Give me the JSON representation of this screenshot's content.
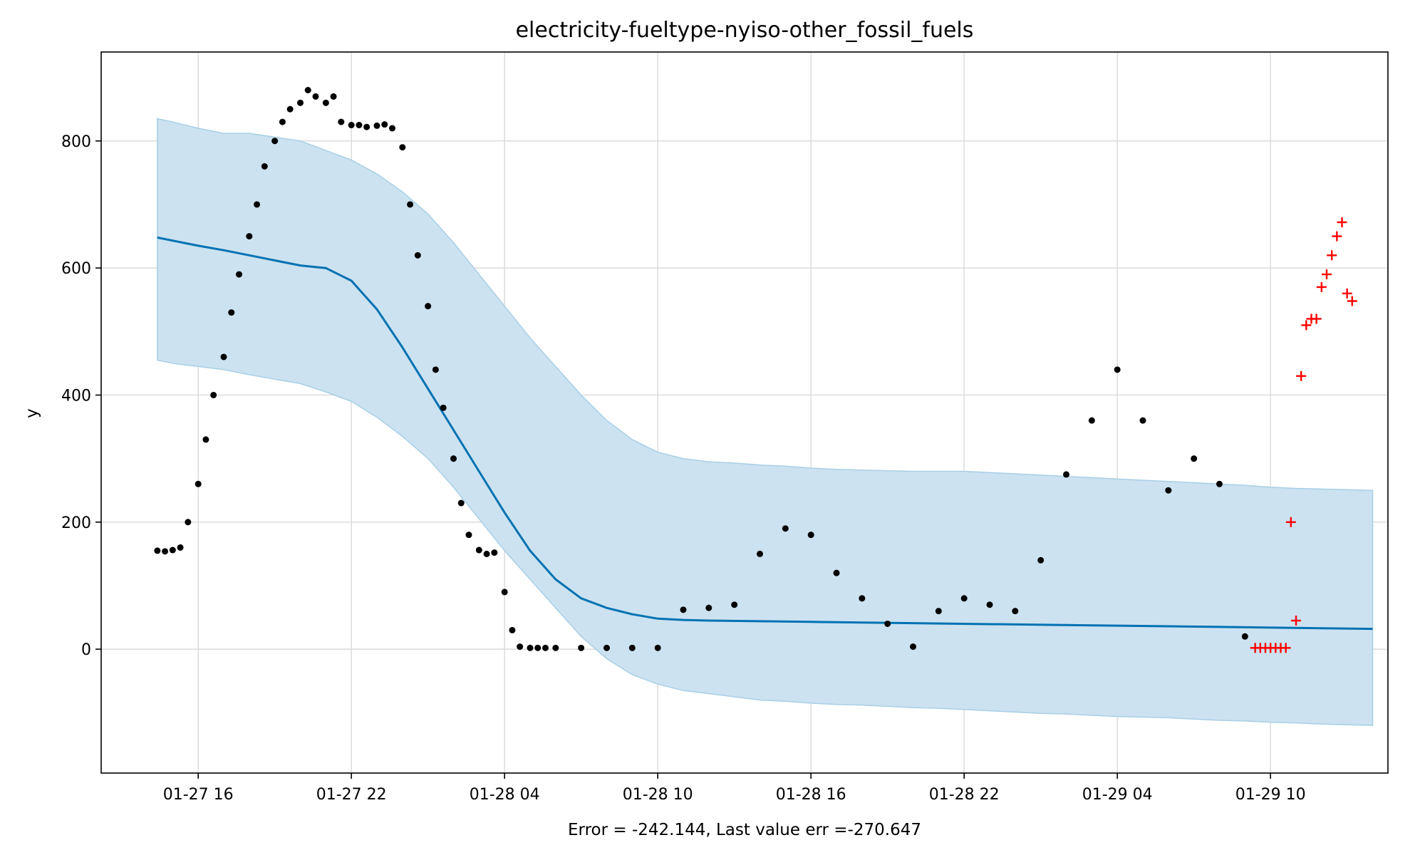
{
  "chart_data": {
    "type": "scatter",
    "title": "electricity-fueltype-nyiso-other_fossil_fuels",
    "xlabel": "Error = -242.144, Last value err =-270.647",
    "ylabel": "y",
    "x_ticks": [
      {
        "t": 16,
        "label": "01-27 16"
      },
      {
        "t": 22,
        "label": "01-27 22"
      },
      {
        "t": 28,
        "label": "01-28 04"
      },
      {
        "t": 34,
        "label": "01-28 10"
      },
      {
        "t": 40,
        "label": "01-28 16"
      },
      {
        "t": 46,
        "label": "01-28 22"
      },
      {
        "t": 52,
        "label": "01-29 04"
      },
      {
        "t": 58,
        "label": "01-29 10"
      }
    ],
    "y_ticks": [
      0,
      200,
      400,
      600,
      800
    ],
    "xlim": [
      12.2,
      62.6
    ],
    "ylim": [
      -195,
      940
    ],
    "grid": true,
    "colors": {
      "observed": "#000000",
      "forecast_line": "#0072b2",
      "band_fill": "#cce2f0",
      "band_edge": "#a8cfe6",
      "test_points": "#ff0000"
    },
    "series": [
      {
        "kind": "band",
        "x": [
          14.4,
          15,
          16,
          17,
          18,
          19,
          20,
          21,
          22,
          23,
          24,
          25,
          26,
          27,
          28,
          29,
          30,
          31,
          32,
          33,
          34,
          35,
          36,
          37,
          38,
          39,
          40,
          41,
          42,
          43,
          44,
          45,
          46,
          47,
          48,
          49,
          50,
          51,
          52,
          53,
          54,
          55,
          56,
          57,
          58,
          59,
          60,
          61,
          62
        ],
        "upper": [
          835,
          830,
          820,
          812,
          812,
          806,
          800,
          785,
          770,
          748,
          720,
          685,
          640,
          590,
          540,
          490,
          445,
          400,
          360,
          330,
          310,
          300,
          295,
          293,
          290,
          288,
          285,
          283,
          282,
          281,
          280,
          280,
          280,
          278,
          276,
          274,
          272,
          270,
          268,
          266,
          264,
          262,
          260,
          258,
          255,
          253,
          252,
          251,
          250
        ],
        "lower": [
          455,
          450,
          445,
          440,
          432,
          425,
          418,
          405,
          390,
          365,
          335,
          300,
          255,
          205,
          155,
          110,
          65,
          20,
          -15,
          -40,
          -55,
          -65,
          -70,
          -75,
          -80,
          -82,
          -85,
          -87,
          -88,
          -90,
          -92,
          -93,
          -95,
          -97,
          -99,
          -101,
          -102,
          -104,
          -106,
          -107,
          -108,
          -110,
          -112,
          -113,
          -115,
          -116,
          -118,
          -119,
          -120
        ]
      },
      {
        "kind": "line",
        "x": [
          14.4,
          16,
          17,
          18,
          19,
          20,
          21,
          22,
          23,
          24,
          25,
          26,
          27,
          28,
          29,
          30,
          31,
          32,
          33,
          34,
          35,
          36,
          38,
          40,
          44,
          48,
          52,
          56,
          60,
          62
        ],
        "y": [
          648,
          635,
          628,
          620,
          612,
          604,
          600,
          580,
          535,
          475,
          410,
          345,
          280,
          215,
          155,
          110,
          80,
          65,
          55,
          48,
          46,
          45,
          44,
          43,
          41,
          39,
          37,
          35,
          33,
          32
        ]
      },
      {
        "kind": "observed",
        "x": [
          14.4,
          14.7,
          15,
          15.3,
          15.6,
          16,
          16.3,
          16.6,
          17,
          17.3,
          17.6,
          18,
          18.3,
          18.6,
          19,
          19.3,
          19.6,
          20,
          20.3,
          20.6,
          21,
          21.3,
          21.6,
          22,
          22.3,
          22.6,
          23,
          23.3,
          23.6,
          24,
          24.3,
          24.6,
          25,
          25.3,
          25.6,
          26,
          26.3,
          26.6,
          27,
          27.3,
          27.6,
          28,
          28.3,
          28.6,
          29,
          29.3,
          29.6,
          30,
          31,
          32,
          33,
          34,
          35,
          36,
          37,
          38,
          39,
          40,
          41,
          42,
          43,
          44,
          45,
          46,
          47,
          48,
          49,
          50,
          51,
          52,
          53,
          54,
          55,
          56,
          57
        ],
        "y": [
          155,
          154,
          156,
          160,
          200,
          260,
          330,
          400,
          460,
          530,
          590,
          650,
          700,
          760,
          800,
          830,
          850,
          860,
          880,
          870,
          860,
          870,
          830,
          825,
          825,
          822,
          824,
          826,
          820,
          790,
          700,
          620,
          540,
          440,
          380,
          300,
          230,
          180,
          156,
          150,
          152,
          90,
          30,
          4,
          2,
          2,
          2,
          2,
          2,
          2,
          2,
          2,
          62,
          65,
          70,
          150,
          190,
          180,
          120,
          80,
          40,
          4,
          60,
          80,
          70,
          60,
          140,
          275,
          360,
          440,
          360,
          250,
          300,
          260,
          20
        ]
      },
      {
        "kind": "test",
        "x": [
          57.4,
          57.6,
          57.8,
          58,
          58.2,
          58.4,
          58.6,
          58.8,
          59,
          59.2,
          59.4,
          59.6,
          59.8,
          60,
          60.2,
          60.4,
          60.6,
          60.8,
          61,
          61.2
        ],
        "y": [
          2,
          2,
          2,
          2,
          2,
          2,
          2,
          200,
          45,
          430,
          510,
          520,
          520,
          570,
          590,
          620,
          650,
          672,
          560,
          548
        ]
      }
    ]
  }
}
